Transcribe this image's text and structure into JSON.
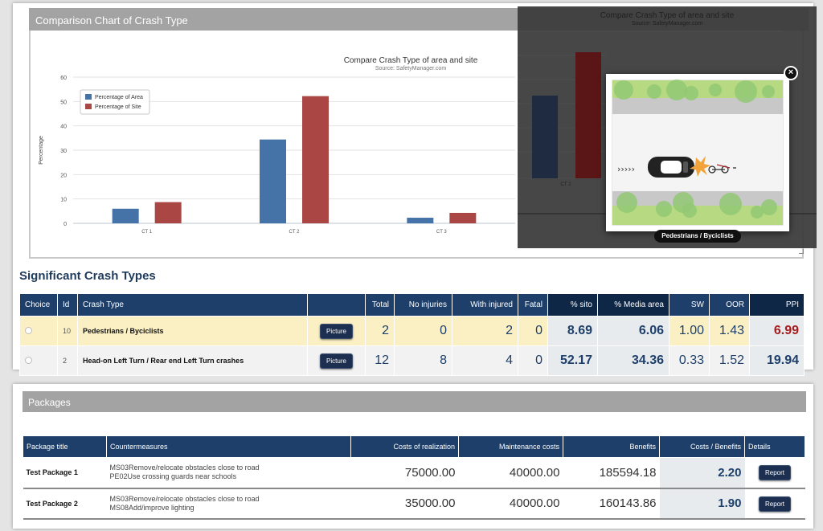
{
  "comparison_panel": {
    "title": "Comparison Chart of Crash Type"
  },
  "chart_data": {
    "type": "bar",
    "title": "Compare Crash Type of area and site",
    "subtitle": "Source: SafetyManager.com",
    "ylabel": "Percentage",
    "categories": [
      "CT 1",
      "CT 2",
      "CT 3"
    ],
    "series": [
      {
        "name": "Percentage of Area",
        "values": [
          6,
          34.4,
          2.3
        ],
        "color": "#4572a7"
      },
      {
        "name": "Percentage of Site",
        "values": [
          8.7,
          52.2,
          4.3
        ],
        "color": "#aa4643"
      }
    ],
    "ylim": [
      0,
      60
    ],
    "yticks": [
      "0",
      "10",
      "20",
      "30",
      "40",
      "50",
      "60"
    ],
    "legend": "top-left",
    "grid": true
  },
  "overlay": {
    "chart_title": "Compare Crash Type of area and site",
    "chart_subtitle": "Source: SafetyManager.com",
    "tick_label": "CT 2",
    "close_icon": "×",
    "caption": "Pedestrians / Byciclists"
  },
  "significant": {
    "title": "Significant Crash Types",
    "headers": [
      "Choice",
      "Id",
      "Crash Type",
      "",
      "Total",
      "No injuries",
      "With injured",
      "Fatal",
      "% sito",
      "% Media area",
      "SW",
      "OOR",
      "PPI"
    ],
    "rows": [
      {
        "id": "10",
        "crash_type": "Pedestrians / Byciclists",
        "button": "Picture",
        "total": "2",
        "no_injuries": "0",
        "with_injured": "2",
        "fatal": "0",
        "pct_site": "8.69",
        "pct_area": "6.06",
        "sw": "1.00",
        "oor": "1.43",
        "ppi": "6.99",
        "ppi_color": "#a61c1c"
      },
      {
        "id": "2",
        "crash_type": "Head-on Left Turn / Rear end Left Turn crashes",
        "button": "Picture",
        "total": "12",
        "no_injuries": "8",
        "with_injured": "4",
        "fatal": "0",
        "pct_site": "52.17",
        "pct_area": "34.36",
        "sw": "0.33",
        "oor": "1.52",
        "ppi": "19.94",
        "ppi_color": "#1d3f6a"
      }
    ]
  },
  "packages": {
    "title": "Packages",
    "headers": [
      "Package title",
      "Countermeasures",
      "Costs of realization",
      "Maintenance costs",
      "Benefits",
      "Costs / Benefits",
      "Details"
    ],
    "rows": [
      {
        "title": "Test Package 1",
        "cm1": "MS03Remove/relocate obstacles close to road",
        "cm2": "PE02Use crossing guards near schools",
        "realization": "75000.00",
        "maintenance": "40000.00",
        "benefits": "185594.18",
        "ratio": "2.20",
        "button": "Report"
      },
      {
        "title": "Test Package 2",
        "cm1": "MS03Remove/relocate obstacles close to road",
        "cm2": "MS08Add/improve lighting",
        "realization": "35000.00",
        "maintenance": "40000.00",
        "benefits": "160143.86",
        "ratio": "1.90",
        "button": "Report"
      }
    ]
  }
}
